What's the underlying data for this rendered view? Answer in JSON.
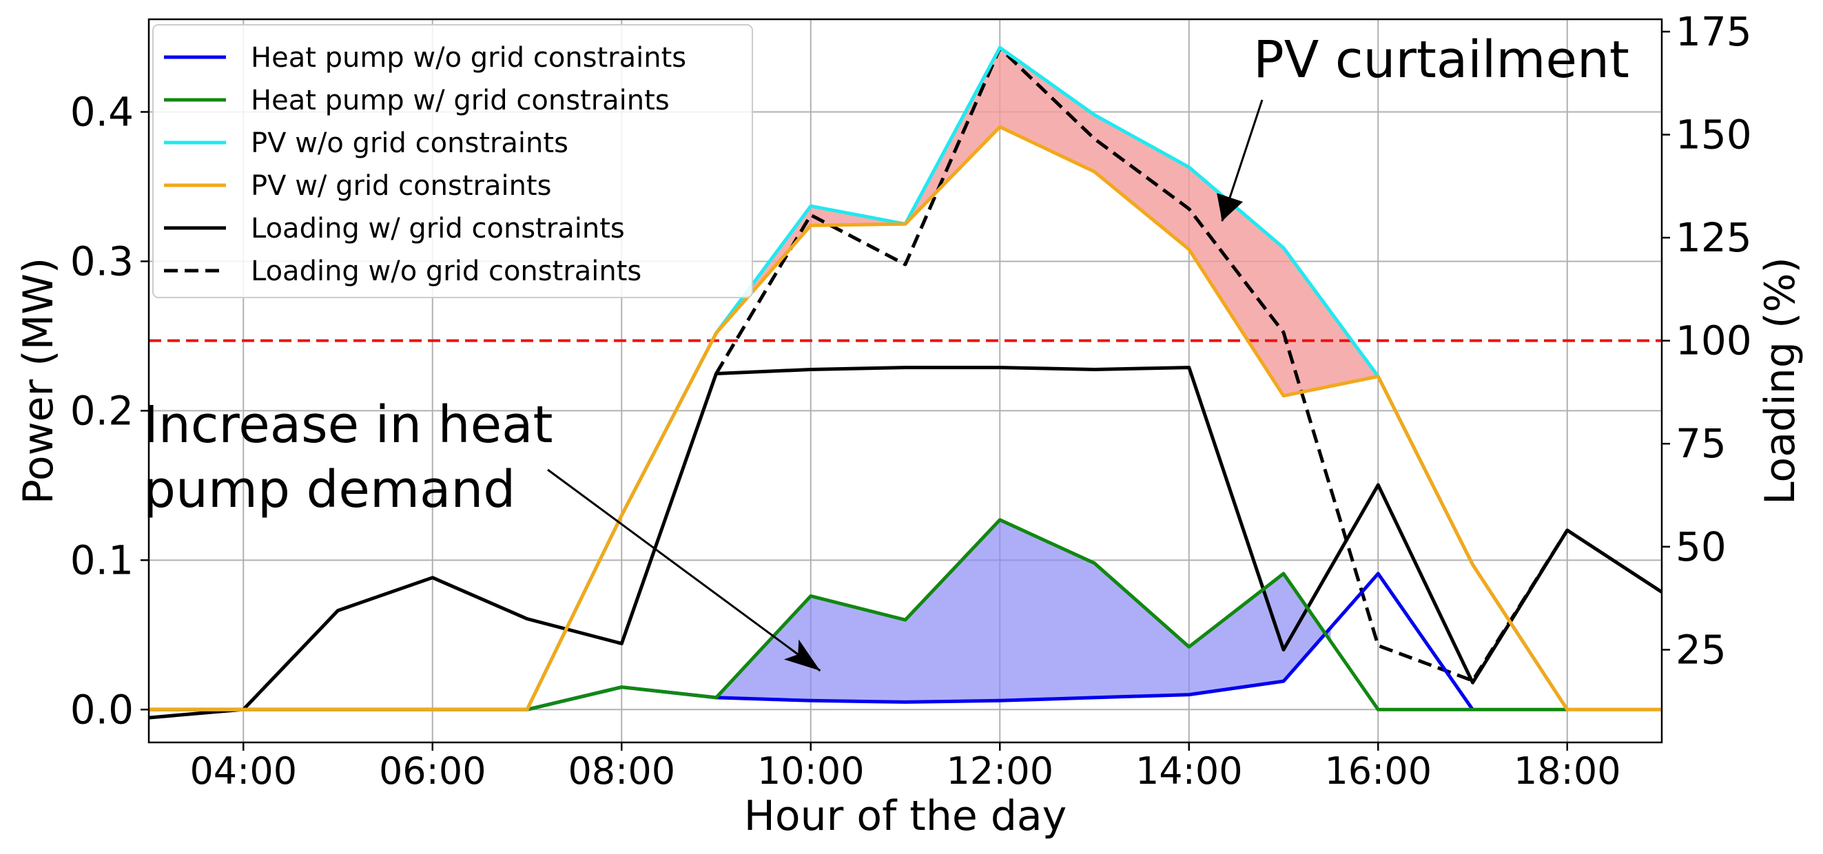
{
  "chart_data": {
    "type": "line",
    "xlabel": "Hour of the day",
    "ylabel_left": "Power (MW)",
    "ylabel_right": "Loading (%)",
    "x_hours": [
      3,
      4,
      5,
      6,
      7,
      8,
      9,
      10,
      11,
      12,
      13,
      14,
      15,
      16,
      17,
      18,
      19
    ],
    "x_tick_hours": [
      4,
      6,
      8,
      10,
      12,
      14,
      16,
      18
    ],
    "x_tick_labels": [
      "04:00",
      "06:00",
      "08:00",
      "10:00",
      "12:00",
      "14:00",
      "16:00",
      "18:00"
    ],
    "xlim": [
      3,
      19
    ],
    "ylim_left": [
      -0.022,
      0.462
    ],
    "ylim_right": [
      2.5,
      178
    ],
    "left_ticks": [
      0.0,
      0.1,
      0.2,
      0.3,
      0.4
    ],
    "left_tick_labels": [
      "0.0",
      "0.1",
      "0.2",
      "0.3",
      "0.4"
    ],
    "right_ticks": [
      25,
      50,
      75,
      100,
      125,
      150,
      175
    ],
    "right_tick_labels": [
      "25",
      "50",
      "75",
      "100",
      "125",
      "150",
      "175"
    ],
    "threshold_line": {
      "axis": "right",
      "value": 100,
      "color": "#ee1111"
    },
    "series": [
      {
        "name": "Heat pump w/o grid constraints",
        "axis": "left",
        "color": "#0000ee",
        "dash": false,
        "x": [
          3,
          4,
          5,
          6,
          7,
          8,
          9,
          10,
          11,
          12,
          13,
          14,
          15,
          16,
          17
        ],
        "values": [
          0.0,
          0.0,
          0.0,
          0.0,
          0.0,
          0.015,
          0.008,
          0.006,
          0.005,
          0.006,
          0.008,
          0.01,
          0.019,
          0.091,
          0.0
        ]
      },
      {
        "name": "Heat pump w/ grid constraints",
        "axis": "left",
        "color": "#118811",
        "dash": false,
        "x": [
          3,
          4,
          5,
          6,
          7,
          8,
          9,
          10,
          11,
          12,
          13,
          14,
          15,
          16,
          17,
          18
        ],
        "values": [
          0.0,
          0.0,
          0.0,
          0.0,
          0.0,
          0.015,
          0.008,
          0.076,
          0.06,
          0.127,
          0.098,
          0.042,
          0.091,
          0.0,
          0.0,
          0.0
        ]
      },
      {
        "name": "PV w/o grid constraints",
        "axis": "left",
        "color": "#22e8f0",
        "dash": false,
        "x": [
          3,
          4,
          5,
          6,
          7,
          8,
          9,
          10,
          11,
          12,
          13,
          14,
          15,
          16,
          17,
          18,
          19
        ],
        "values": [
          0.0,
          0.0,
          0.0,
          0.0,
          0.0,
          0.13,
          0.252,
          0.337,
          0.325,
          0.443,
          0.398,
          0.363,
          0.309,
          0.223,
          0.097,
          0.0,
          0.0
        ]
      },
      {
        "name": "PV w/ grid constraints",
        "axis": "left",
        "color": "#f2a81c",
        "dash": false,
        "x": [
          3,
          4,
          5,
          6,
          7,
          8,
          9,
          10,
          11,
          12,
          13,
          14,
          15,
          16,
          17,
          18,
          19
        ],
        "values": [
          0.0,
          0.0,
          0.0,
          0.0,
          0.0,
          0.13,
          0.252,
          0.324,
          0.325,
          0.39,
          0.36,
          0.308,
          0.21,
          0.223,
          0.097,
          0.0,
          0.0
        ]
      },
      {
        "name": "Loading w/ grid constraints",
        "axis": "right",
        "color": "#000000",
        "dash": false,
        "x": [
          3,
          4,
          5,
          6,
          7,
          8,
          9,
          10,
          11,
          12,
          13,
          14,
          15,
          16,
          17,
          18,
          19
        ],
        "values": [
          8.5,
          10.5,
          34.5,
          42.5,
          32.5,
          26.5,
          92,
          93,
          93.5,
          93.5,
          93,
          93.5,
          25,
          65,
          17,
          54,
          39
        ]
      },
      {
        "name": "Loading w/o grid constraints",
        "axis": "right",
        "color": "#000000",
        "dash": true,
        "x": [
          9,
          10,
          11,
          12,
          13,
          14,
          15,
          16,
          17,
          18
        ],
        "values": [
          92,
          130.5,
          118.5,
          171,
          149,
          132,
          102,
          26,
          17.5,
          54
        ]
      }
    ],
    "fills": [
      {
        "name": "PV curtailment area",
        "color": "#f49b9b",
        "opacity": 0.8,
        "upper": "PV w/o grid constraints",
        "lower": "PV w/ grid constraints",
        "x_from": 9,
        "x_to": 16
      },
      {
        "name": "Heat pump increase area",
        "color": "#8c8cf5",
        "opacity": 0.7,
        "upper": "Heat pump w/ grid constraints",
        "lower": "Heat pump w/o grid constraints",
        "x_from": 9,
        "x_to": 15.5
      }
    ],
    "annotations": [
      {
        "id": "pv-curtailment",
        "lines": [
          "PV curtailment"
        ],
        "arrow_to_hour": 14.35,
        "arrow_to_value": 0.327
      },
      {
        "id": "heat-pump-increase",
        "lines": [
          "Increase in heat",
          "pump demand"
        ],
        "arrow_to_hour": 10.1,
        "arrow_to_value": 0.026
      }
    ]
  }
}
